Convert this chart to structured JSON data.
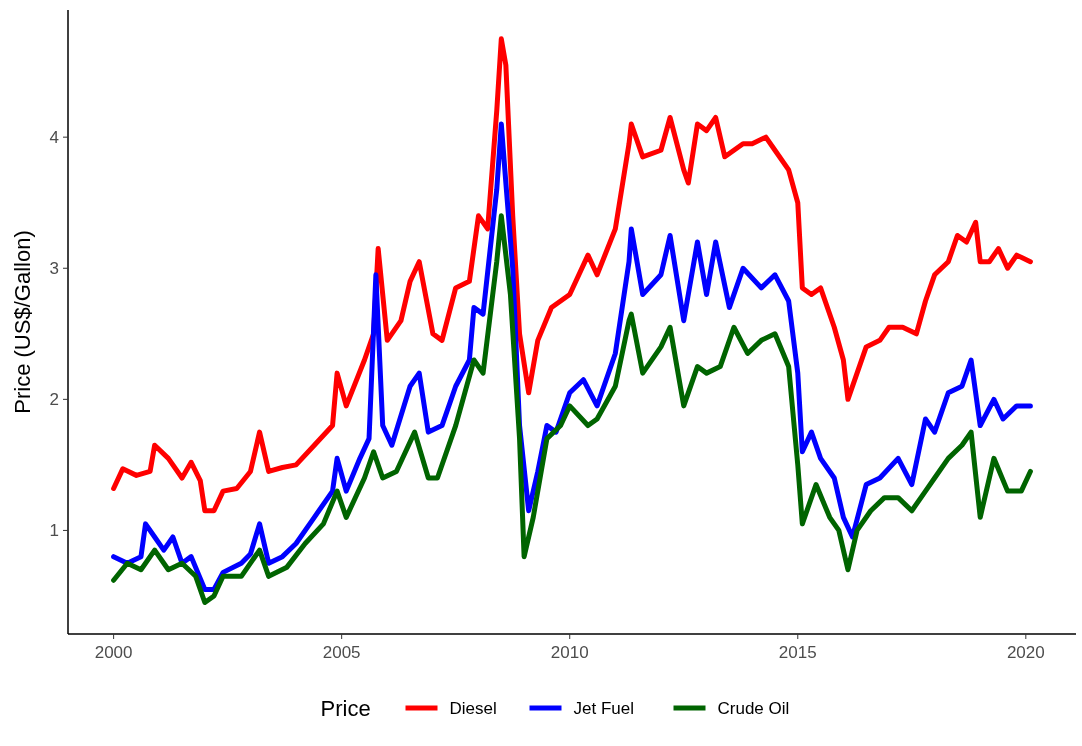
{
  "chart_data": {
    "type": "line",
    "ylabel": "Price (US$/Gallon)",
    "legend_title": "Price",
    "legend": "bottom",
    "grid": false,
    "line_style": "solid",
    "marker": "none",
    "xlim": [
      1999,
      2021.1
    ],
    "xticks": [
      2000,
      2005,
      2010,
      2015,
      2020
    ],
    "ylim": [
      0.21,
      4.97
    ],
    "yticks": [
      1,
      2,
      3,
      4
    ],
    "series": [
      {
        "name": "Diesel",
        "color": "#ff0000",
        "x": [
          2000.0,
          2000.2,
          2000.5,
          2000.8,
          2000.9,
          2001.2,
          2001.5,
          2001.7,
          2001.9,
          2002.0,
          2002.2,
          2002.4,
          2002.7,
          2003.0,
          2003.2,
          2003.4,
          2003.7,
          2004.0,
          2004.4,
          2004.8,
          2004.9,
          2005.1,
          2005.5,
          2005.7,
          2005.8,
          2006.0,
          2006.3,
          2006.5,
          2006.7,
          2007.0,
          2007.2,
          2007.5,
          2007.8,
          2008.0,
          2008.2,
          2008.4,
          2008.5,
          2008.6,
          2008.75,
          2008.9,
          2009.1,
          2009.3,
          2009.6,
          2010.0,
          2010.4,
          2010.6,
          2011.0,
          2011.3,
          2011.35,
          2011.6,
          2012.0,
          2012.2,
          2012.5,
          2012.6,
          2012.8,
          2013.0,
          2013.2,
          2013.4,
          2013.8,
          2014.0,
          2014.3,
          2014.5,
          2014.8,
          2015.0,
          2015.1,
          2015.3,
          2015.5,
          2015.8,
          2016.0,
          2016.1,
          2016.3,
          2016.5,
          2016.8,
          2017.0,
          2017.3,
          2017.6,
          2017.8,
          2018.0,
          2018.3,
          2018.5,
          2018.7,
          2018.9,
          2019.0,
          2019.2,
          2019.4,
          2019.6,
          2019.8,
          2020.1
        ],
        "values": [
          1.32,
          1.47,
          1.42,
          1.45,
          1.65,
          1.55,
          1.4,
          1.52,
          1.38,
          1.15,
          1.15,
          1.3,
          1.32,
          1.45,
          1.75,
          1.45,
          1.48,
          1.5,
          1.65,
          1.8,
          2.2,
          1.95,
          2.3,
          2.5,
          3.15,
          2.45,
          2.6,
          2.9,
          3.05,
          2.5,
          2.45,
          2.85,
          2.9,
          3.4,
          3.3,
          4.2,
          4.75,
          4.55,
          3.4,
          2.5,
          2.05,
          2.45,
          2.7,
          2.8,
          3.1,
          2.95,
          3.3,
          3.95,
          4.1,
          3.85,
          3.9,
          4.15,
          3.75,
          3.65,
          4.1,
          4.05,
          4.15,
          3.85,
          3.95,
          3.95,
          4.0,
          3.9,
          3.75,
          3.5,
          2.85,
          2.8,
          2.85,
          2.55,
          2.3,
          2.0,
          2.2,
          2.4,
          2.45,
          2.55,
          2.55,
          2.5,
          2.75,
          2.95,
          3.05,
          3.25,
          3.2,
          3.35,
          3.05,
          3.05,
          3.15,
          3.0,
          3.1,
          3.05
        ]
      },
      {
        "name": "Jet Fuel",
        "color": "#0000ff",
        "x": [
          2000.0,
          2000.3,
          2000.6,
          2000.7,
          2000.9,
          2001.1,
          2001.3,
          2001.5,
          2001.7,
          2002.0,
          2002.2,
          2002.4,
          2002.8,
          2003.0,
          2003.2,
          2003.4,
          2003.7,
          2004.0,
          2004.4,
          2004.8,
          2004.9,
          2005.1,
          2005.4,
          2005.6,
          2005.75,
          2005.9,
          2006.1,
          2006.5,
          2006.7,
          2006.9,
          2007.2,
          2007.5,
          2007.8,
          2007.9,
          2008.1,
          2008.4,
          2008.5,
          2008.6,
          2008.75,
          2008.9,
          2009.1,
          2009.3,
          2009.5,
          2009.7,
          2010.0,
          2010.3,
          2010.6,
          2011.0,
          2011.3,
          2011.35,
          2011.6,
          2012.0,
          2012.2,
          2012.5,
          2012.8,
          2013.0,
          2013.2,
          2013.5,
          2013.8,
          2014.2,
          2014.5,
          2014.8,
          2015.0,
          2015.1,
          2015.3,
          2015.5,
          2015.8,
          2016.0,
          2016.2,
          2016.5,
          2016.8,
          2017.2,
          2017.5,
          2017.8,
          2018.0,
          2018.3,
          2018.6,
          2018.8,
          2019.0,
          2019.3,
          2019.5,
          2019.8,
          2020.1
        ],
        "values": [
          0.8,
          0.75,
          0.8,
          1.05,
          0.95,
          0.85,
          0.95,
          0.75,
          0.8,
          0.55,
          0.55,
          0.68,
          0.75,
          0.82,
          1.05,
          0.75,
          0.8,
          0.9,
          1.1,
          1.3,
          1.55,
          1.3,
          1.55,
          1.7,
          2.95,
          1.8,
          1.65,
          2.1,
          2.2,
          1.75,
          1.8,
          2.1,
          2.3,
          2.7,
          2.65,
          3.6,
          4.1,
          3.65,
          3.0,
          1.8,
          1.15,
          1.45,
          1.8,
          1.75,
          2.05,
          2.15,
          1.95,
          2.35,
          3.05,
          3.3,
          2.8,
          2.95,
          3.25,
          2.6,
          3.2,
          2.8,
          3.2,
          2.7,
          3.0,
          2.85,
          2.95,
          2.75,
          2.2,
          1.6,
          1.75,
          1.55,
          1.4,
          1.1,
          0.95,
          1.35,
          1.4,
          1.55,
          1.35,
          1.85,
          1.75,
          2.05,
          2.1,
          2.3,
          1.8,
          2.0,
          1.85,
          1.95,
          1.95
        ]
      },
      {
        "name": "Crude Oil",
        "color": "#006400",
        "x": [
          2000.0,
          2000.3,
          2000.6,
          2000.9,
          2001.2,
          2001.5,
          2001.8,
          2002.0,
          2002.2,
          2002.4,
          2002.8,
          2003.2,
          2003.4,
          2003.8,
          2004.2,
          2004.6,
          2004.9,
          2005.1,
          2005.5,
          2005.7,
          2005.9,
          2006.2,
          2006.6,
          2006.9,
          2007.1,
          2007.5,
          2007.9,
          2008.1,
          2008.4,
          2008.5,
          2008.7,
          2008.9,
          2009.0,
          2009.2,
          2009.5,
          2009.8,
          2010.0,
          2010.4,
          2010.6,
          2011.0,
          2011.3,
          2011.35,
          2011.6,
          2012.0,
          2012.2,
          2012.5,
          2012.8,
          2013.0,
          2013.3,
          2013.6,
          2013.9,
          2014.2,
          2014.5,
          2014.8,
          2015.0,
          2015.1,
          2015.4,
          2015.7,
          2015.9,
          2016.1,
          2016.3,
          2016.6,
          2016.9,
          2017.2,
          2017.5,
          2017.8,
          2018.0,
          2018.3,
          2018.6,
          2018.8,
          2019.0,
          2019.3,
          2019.6,
          2019.9,
          2020.1
        ],
        "values": [
          0.62,
          0.75,
          0.7,
          0.85,
          0.7,
          0.75,
          0.65,
          0.45,
          0.5,
          0.65,
          0.65,
          0.85,
          0.65,
          0.72,
          0.9,
          1.05,
          1.3,
          1.1,
          1.4,
          1.6,
          1.4,
          1.45,
          1.75,
          1.4,
          1.4,
          1.8,
          2.3,
          2.2,
          3.05,
          3.4,
          2.8,
          1.7,
          0.8,
          1.1,
          1.7,
          1.8,
          1.95,
          1.8,
          1.85,
          2.1,
          2.6,
          2.65,
          2.2,
          2.4,
          2.55,
          1.95,
          2.25,
          2.2,
          2.25,
          2.55,
          2.35,
          2.45,
          2.5,
          2.25,
          1.5,
          1.05,
          1.35,
          1.1,
          1.0,
          0.7,
          1.0,
          1.15,
          1.25,
          1.25,
          1.15,
          1.3,
          1.4,
          1.55,
          1.65,
          1.75,
          1.1,
          1.55,
          1.3,
          1.3,
          1.45
        ]
      }
    ]
  }
}
